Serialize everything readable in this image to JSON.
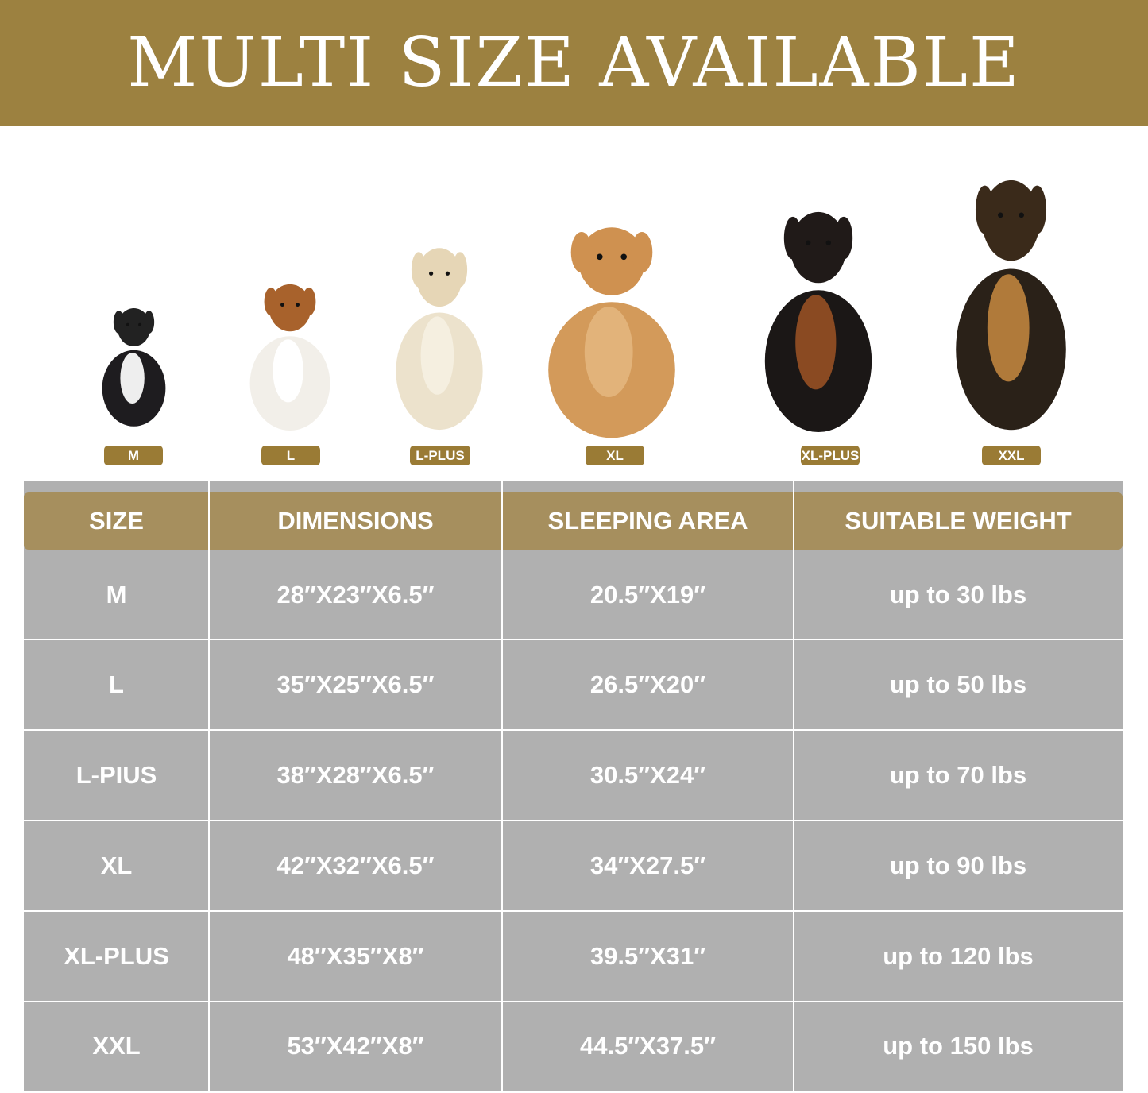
{
  "banner": {
    "title": "MULTI SIZE AVAILABLE",
    "color": "#9c8140"
  },
  "dogs": [
    {
      "size": "M",
      "breed-icon": "french-bulldog"
    },
    {
      "size": "L",
      "breed-icon": "beagle"
    },
    {
      "size": "L-PLUS",
      "breed-icon": "light-golden-retriever"
    },
    {
      "size": "XL",
      "breed-icon": "golden-retriever"
    },
    {
      "size": "XL-PLUS",
      "breed-icon": "doberman"
    },
    {
      "size": "XXL",
      "breed-icon": "german-shepherd"
    }
  ],
  "table": {
    "headers": [
      "SIZE",
      "DIMENSIONS",
      "SLEEPING AREA",
      "SUITABLE WEIGHT"
    ],
    "header_color": "#a68f5e",
    "row_color": "#b0b0b0",
    "rows": [
      [
        "M",
        "28″X23″X6.5″",
        "20.5″X19″",
        "up to 30 lbs"
      ],
      [
        "L",
        "35″X25″X6.5″",
        "26.5″X20″",
        "up to 50 lbs"
      ],
      [
        "L-PIUS",
        "38″X28″X6.5″",
        "30.5″X24″",
        "up to 70 lbs"
      ],
      [
        "XL",
        "42″X32″X6.5″",
        "34″X27.5″",
        "up to 90 lbs"
      ],
      [
        "XL-PLUS",
        "48″X35″X8″",
        "39.5″X31″",
        "up to 120 lbs"
      ],
      [
        "XXL",
        "53″X42″X8″",
        "44.5″X37.5″",
        "up to 150 lbs"
      ]
    ]
  }
}
